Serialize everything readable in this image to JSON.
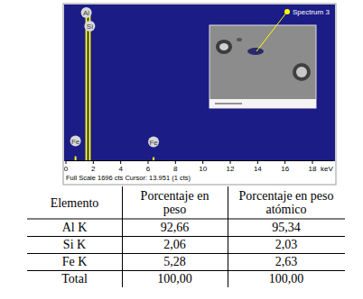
{
  "chart_data": {
    "type": "bar",
    "x_label": "keV",
    "footer": "Full Scale 1696 cts Cursor: 13.951 (1 cts)",
    "inset_label": "Spectrum 3",
    "x": [
      0.7,
      1.49,
      1.74,
      6.4
    ],
    "values": [
      45,
      1696,
      1650,
      35
    ],
    "peak_labels": [
      "Fe",
      "Al",
      "Si",
      "Fe"
    ],
    "color": "#ffff00",
    "xlim": [
      0,
      19.5
    ],
    "xticks": [
      0,
      2,
      4,
      6,
      8,
      10,
      12,
      14,
      16,
      18
    ],
    "ylim": [
      0,
      1696
    ],
    "tick_labels": "x",
    "grid": false
  },
  "table": {
    "header": [
      "Elemento",
      "Porcentaje en peso",
      "Porcentaje en peso atómico"
    ],
    "rows": [
      [
        "Al K",
        "92,66",
        "95,34"
      ],
      [
        "Si K",
        "2,06",
        "2,03"
      ],
      [
        "Fe K",
        "5,28",
        "2,63"
      ],
      [
        "Total",
        "100,00",
        "100,00"
      ]
    ]
  }
}
